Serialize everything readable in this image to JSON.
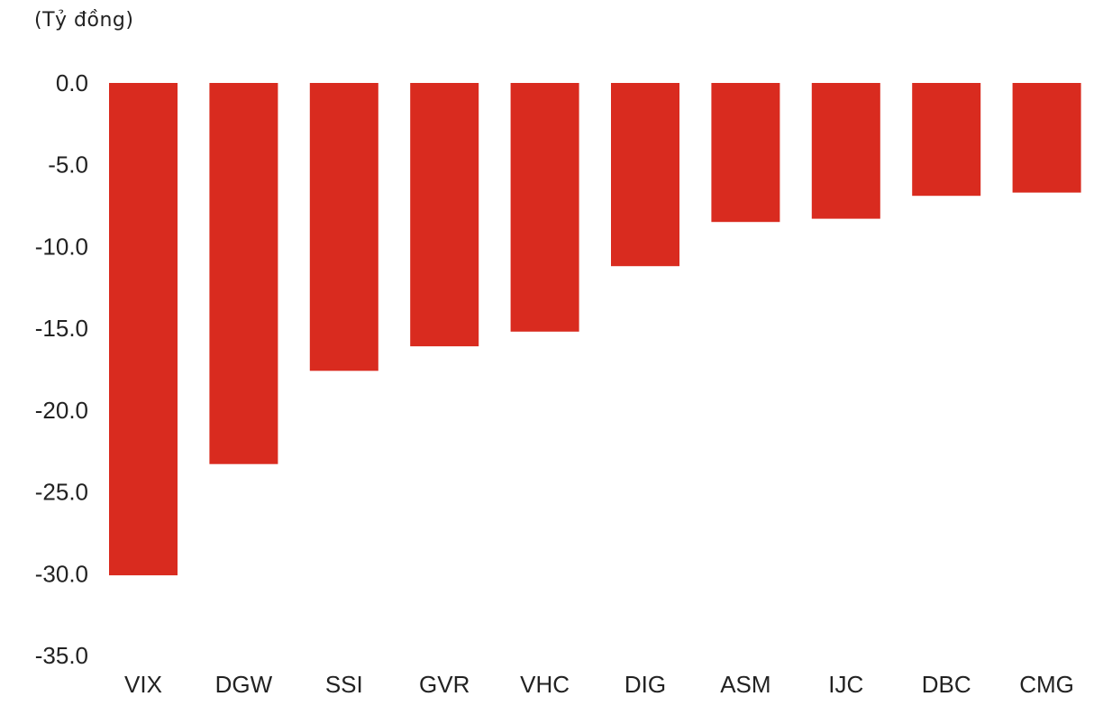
{
  "chart_data": {
    "type": "bar",
    "unit_label": "(Tỷ đồng)",
    "title": "",
    "xlabel": "",
    "ylabel": "",
    "categories": [
      "VIX",
      "DGW",
      "SSI",
      "GVR",
      "VHC",
      "DIG",
      "ASM",
      "IJC",
      "DBC",
      "CMG"
    ],
    "values": [
      -30.1,
      -23.3,
      -17.6,
      -16.1,
      -15.2,
      -11.2,
      -8.5,
      -8.3,
      -6.9,
      -6.7
    ],
    "ylim": [
      -35,
      0
    ],
    "yticks": [
      0,
      -5,
      -10,
      -15,
      -20,
      -25,
      -30,
      -35
    ],
    "ytick_labels": [
      "0.0",
      "-5.0",
      "-10.0",
      "-15.0",
      "-20.0",
      "-25.0",
      "-30.0",
      "-35.0"
    ],
    "grid": false,
    "legend": "none",
    "bar_color": "#D92B1F",
    "text_color": "#222222"
  }
}
